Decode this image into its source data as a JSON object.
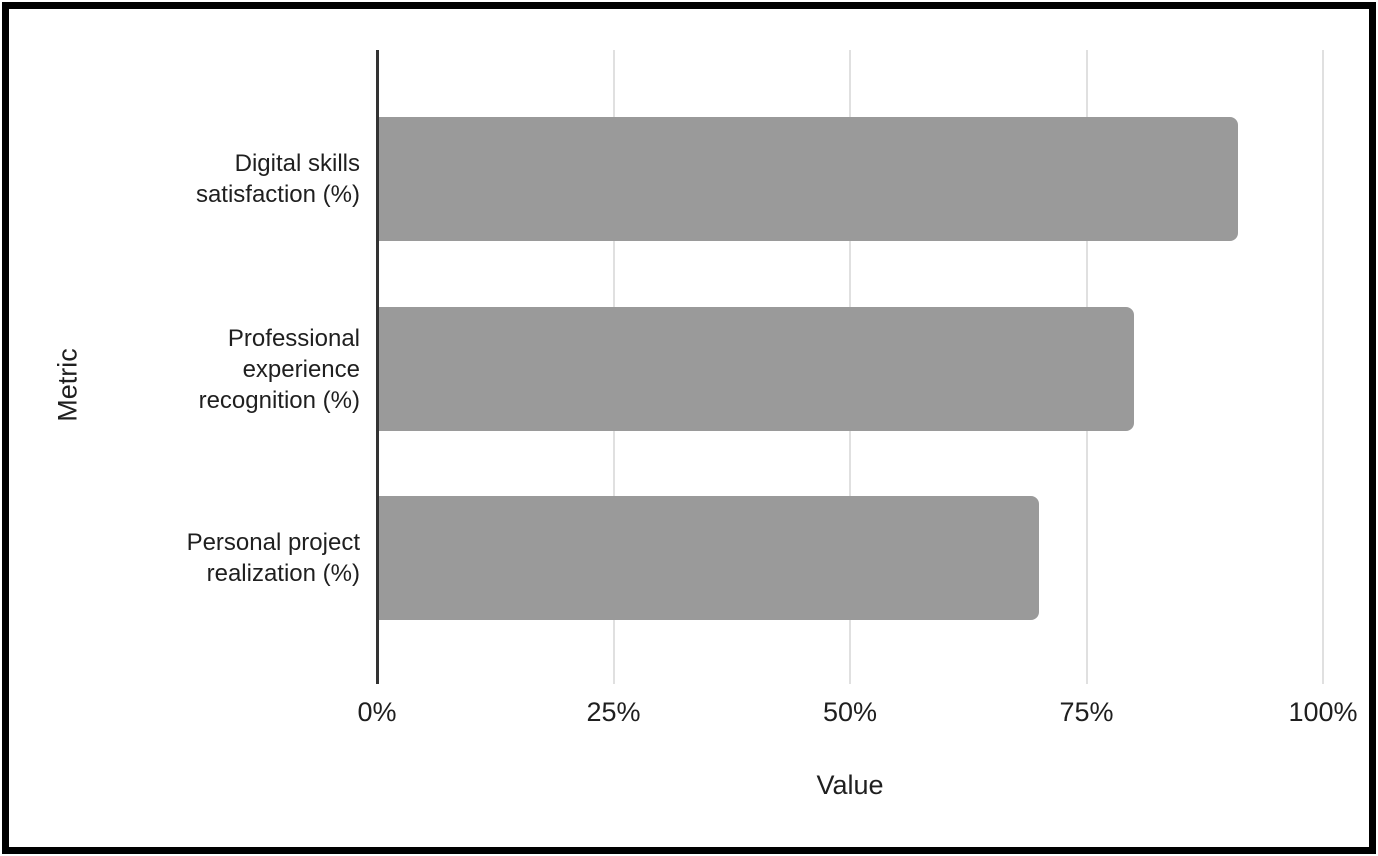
{
  "chart_data": {
    "type": "bar",
    "orientation": "horizontal",
    "title": "",
    "categories": [
      "Digital skills satisfaction (%)",
      "Professional experience recognition (%)",
      "Personal project realization (%)"
    ],
    "values": [
      91,
      80,
      70
    ],
    "xlabel": "Value",
    "ylabel": "Metric",
    "xlim": [
      0,
      100
    ],
    "x_tick_values": [
      0,
      25,
      50,
      75,
      100
    ],
    "x_tick_labels": [
      "0%",
      "25%",
      "50%",
      "75%",
      "100%"
    ],
    "grid": true,
    "legend_position": "none",
    "bar_color": "#9a9a9a",
    "gridline_color": "#e0e0e0",
    "axis_line_color": "#333333",
    "text_color": "#1f1f1f",
    "background_color": "#ffffff",
    "frame_color": "#000000"
  }
}
